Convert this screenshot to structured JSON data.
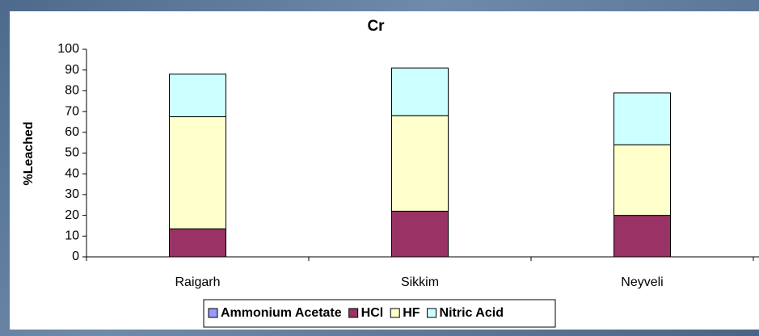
{
  "chart_data": {
    "type": "stacked_bar",
    "title": "Cr",
    "y_label": "%Leached",
    "categories": [
      "Raigarh",
      "Sikkim",
      "Neyveli"
    ],
    "series": [
      {
        "name": "Ammonium Acetate",
        "color": "#9999ff",
        "values": [
          0,
          0,
          0
        ]
      },
      {
        "name": "HCl",
        "color": "#993366",
        "values": [
          13.5,
          22,
          20
        ]
      },
      {
        "name": "HF",
        "color": "#ffffcc",
        "values": [
          54,
          46,
          34
        ]
      },
      {
        "name": "Nitric Acid",
        "color": "#ccffff",
        "values": [
          20.5,
          23,
          25
        ]
      }
    ],
    "ylim": [
      0,
      100
    ],
    "yticks": [
      0,
      10,
      20,
      30,
      40,
      50,
      60,
      70,
      80,
      90,
      100
    ],
    "grid": false
  }
}
